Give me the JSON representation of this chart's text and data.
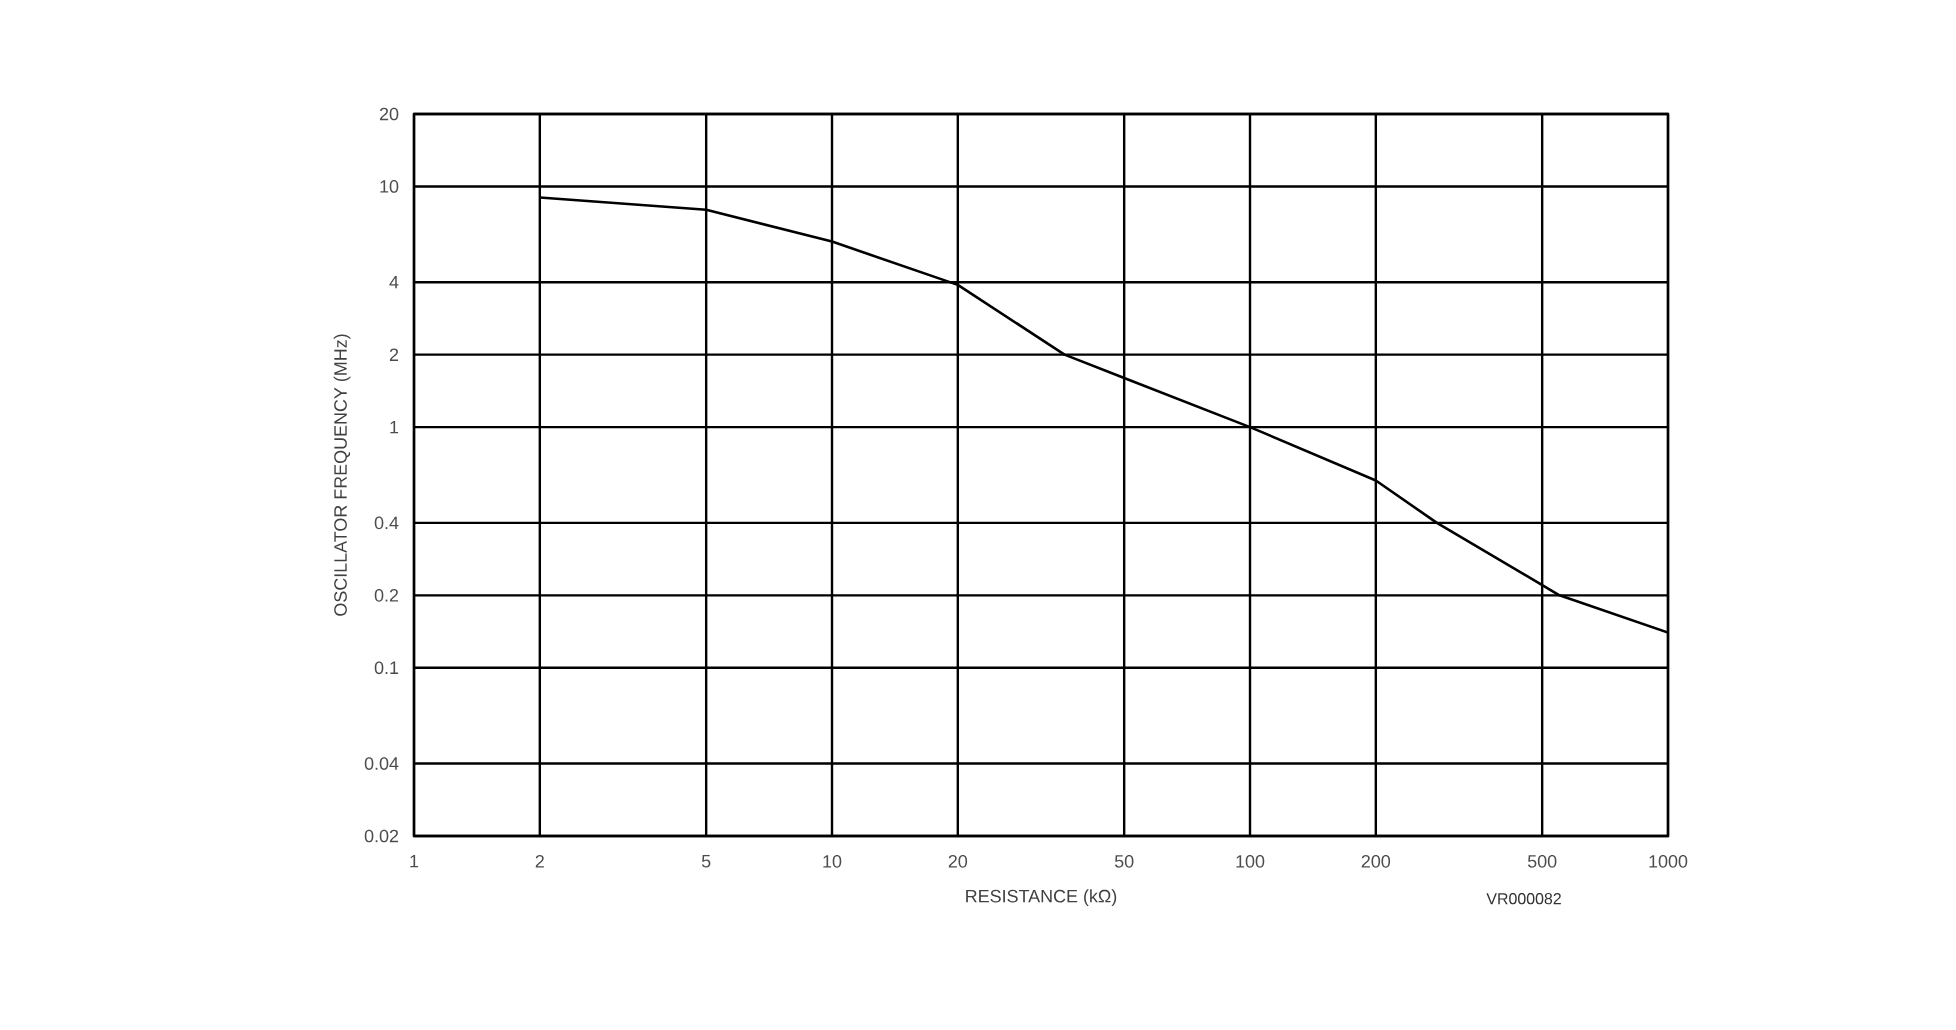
{
  "chart_data": {
    "type": "line",
    "xlabel": "RESISTANCE (kΩ)",
    "ylabel": "OSCILLATOR FREQUENCY (MHz)",
    "log": "xy",
    "grid": true,
    "marker": "none",
    "line_style": "solid",
    "xlim": [
      1,
      1000
    ],
    "ylim": [
      0.02,
      20
    ],
    "xticks": [
      1,
      2,
      5,
      10,
      20,
      50,
      100,
      200,
      500,
      1000
    ],
    "yticks": [
      0.02,
      0.04,
      0.1,
      0.2,
      0.4,
      1,
      2,
      4,
      10,
      20
    ],
    "x": [
      2,
      5,
      10,
      20,
      36,
      50,
      100,
      200,
      280,
      550,
      1000
    ],
    "series": [
      {
        "color": "#000000",
        "values": [
          9,
          8,
          5.9,
          3.9,
          2,
          1.6,
          1,
          0.6,
          0.4,
          0.2,
          0.14
        ]
      }
    ],
    "annotations": [
      "VR000082"
    ]
  }
}
